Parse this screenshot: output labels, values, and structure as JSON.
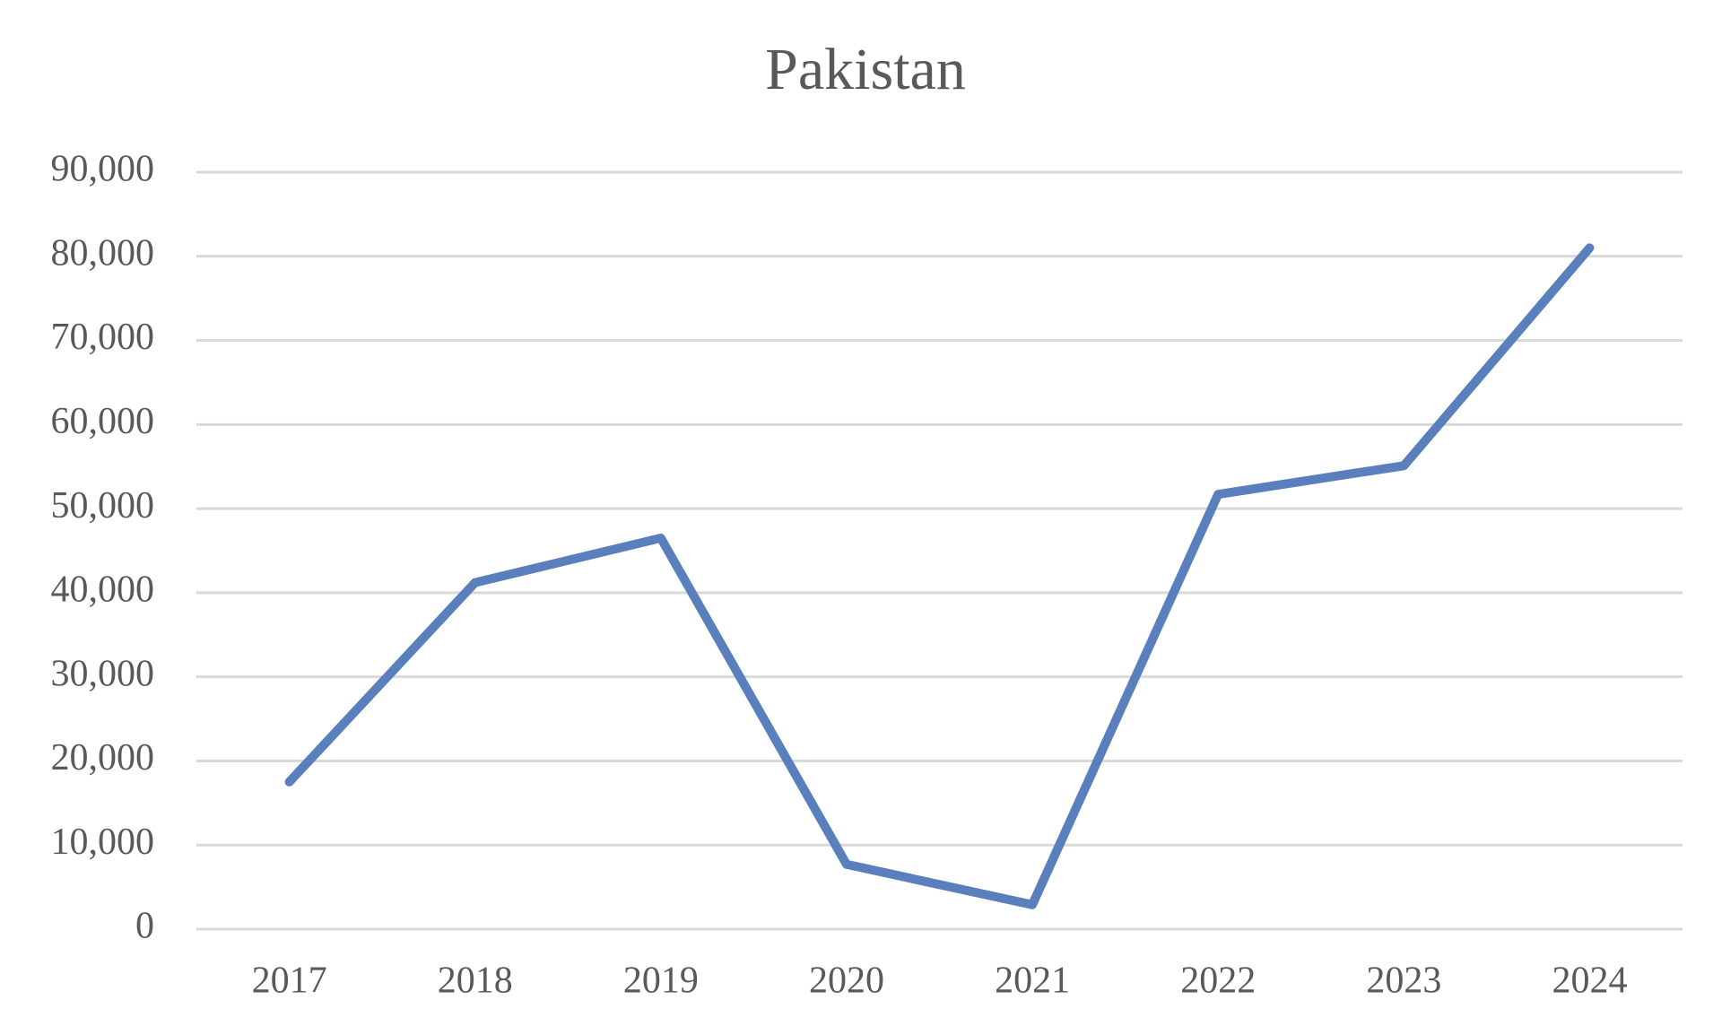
{
  "chart_data": {
    "type": "line",
    "title": "Pakistan",
    "categories": [
      "2017",
      "2018",
      "2019",
      "2020",
      "2021",
      "2022",
      "2023",
      "2024"
    ],
    "values": [
      17500,
      41200,
      46500,
      7700,
      2900,
      51700,
      55100,
      81000
    ],
    "color": "#5a7fbd",
    "ylim": [
      0,
      90000
    ],
    "yticks": [
      0,
      {
        "value": 10000,
        "label": "10,000"
      },
      {
        "value": 20000,
        "label": "20,000"
      },
      {
        "value": 30000,
        "label": "30,000"
      },
      {
        "value": 40000,
        "label": "40,000"
      },
      {
        "value": 50000,
        "label": "50,000"
      },
      {
        "value": 60000,
        "label": "60,000"
      },
      {
        "value": 70000,
        "label": "70,000"
      },
      {
        "value": 80000,
        "label": "80,000"
      },
      {
        "value": 90000,
        "label": "90,000"
      }
    ],
    "grid": true
  }
}
